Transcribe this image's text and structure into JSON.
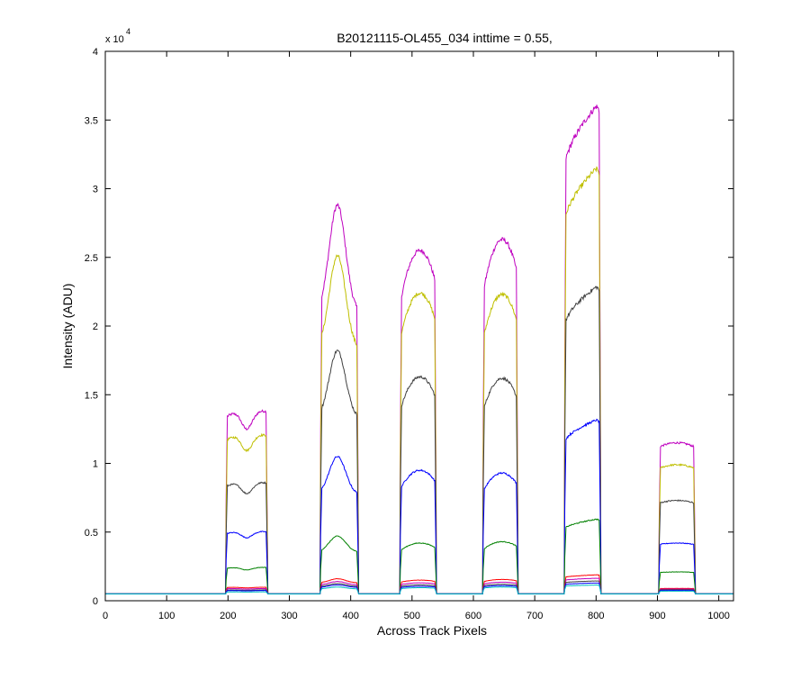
{
  "chart_data": {
    "type": "line",
    "title": "B20121115-OL455_034 inttime = 0.55,",
    "xlabel": "Across Track Pixels",
    "ylabel": "Intensity (ADU)",
    "xlim": [
      0,
      1024
    ],
    "ylim": [
      0,
      40000
    ],
    "x_ticks": [
      "0",
      "100",
      "200",
      "300",
      "400",
      "500",
      "600",
      "700",
      "800",
      "900",
      "1000"
    ],
    "x_tick_values": [
      0,
      100,
      200,
      300,
      400,
      500,
      600,
      700,
      800,
      900,
      1000
    ],
    "y_ticks": [
      "0",
      "0.5",
      "1",
      "1.5",
      "2",
      "2.5",
      "3",
      "3.5",
      "4"
    ],
    "y_tick_values": [
      0,
      5000,
      10000,
      15000,
      20000,
      25000,
      30000,
      35000,
      40000
    ],
    "y_exponent": {
      "base": "x 10",
      "power": "4"
    },
    "grid": false,
    "legend": "none",
    "baseline": 500,
    "peaks": [
      {
        "x0": 196,
        "x1": 265,
        "shape": "double"
      },
      {
        "x0": 350,
        "x1": 413,
        "shape": "peak"
      },
      {
        "x0": 480,
        "x1": 540,
        "shape": "round"
      },
      {
        "x0": 615,
        "x1": 673,
        "shape": "round"
      },
      {
        "x0": 748,
        "x1": 808,
        "shape": "rise"
      },
      {
        "x0": 902,
        "x1": 962,
        "shape": "flat"
      }
    ],
    "series": [
      {
        "color": "#bf00bf",
        "peak_values": [
          14300,
          28800,
          25500,
          26300,
          36400,
          11500
        ]
      },
      {
        "color": "#bfbf00",
        "peak_values": [
          12500,
          25100,
          22400,
          22300,
          31800,
          9900
        ]
      },
      {
        "color": "#404040",
        "peak_values": [
          8900,
          18200,
          16300,
          16200,
          23100,
          7300
        ]
      },
      {
        "color": "#0000ff",
        "peak_values": [
          5200,
          10500,
          9500,
          9300,
          13300,
          4200
        ]
      },
      {
        "color": "#008000",
        "peak_values": [
          2500,
          4700,
          4200,
          4300,
          6000,
          2100
        ]
      },
      {
        "color": "#ff0000",
        "peak_values": [
          1000,
          1600,
          1500,
          1550,
          1900,
          900
        ]
      },
      {
        "color": "#bf00bf",
        "peak_values": [
          900,
          1400,
          1300,
          1350,
          1650,
          850
        ]
      },
      {
        "color": "#404040",
        "peak_values": [
          800,
          1250,
          1150,
          1200,
          1450,
          800
        ]
      },
      {
        "color": "#0000ff",
        "peak_values": [
          750,
          1150,
          1050,
          1100,
          1300,
          750
        ]
      },
      {
        "color": "#00bfbf",
        "peak_values": [
          650,
          1000,
          950,
          1000,
          1150,
          700
        ]
      }
    ]
  }
}
